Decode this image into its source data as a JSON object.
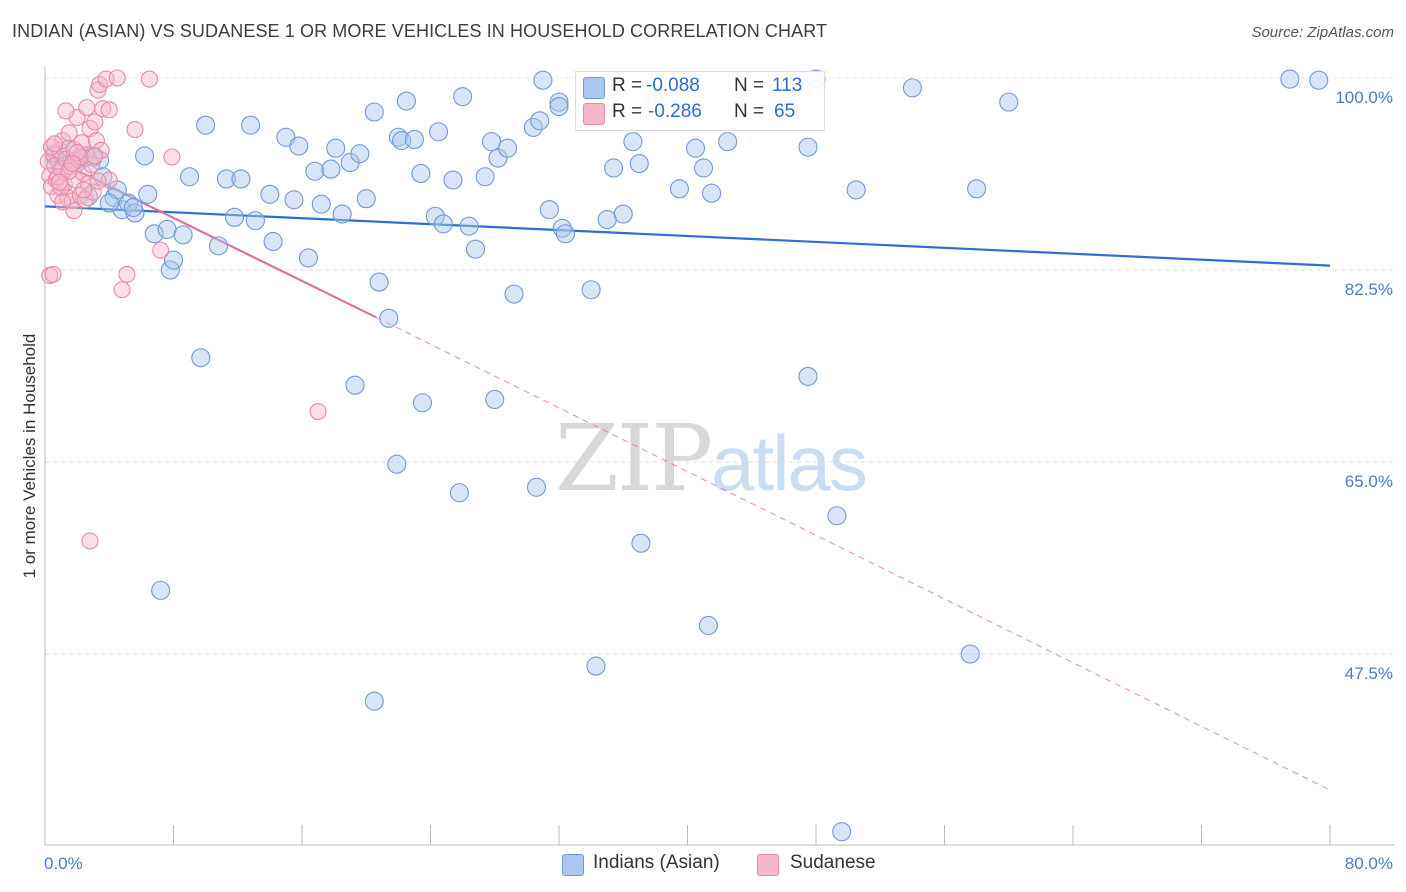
{
  "header": {
    "title": "INDIAN (ASIAN) VS SUDANESE 1 OR MORE VEHICLES IN HOUSEHOLD CORRELATION CHART",
    "source": "Source: ZipAtlas.com"
  },
  "watermark": {
    "zip": "ZIP",
    "atlas": "atlas"
  },
  "legend_top": {
    "rows": [
      {
        "r_label": "R = ",
        "r_value": "-0.088",
        "n_label": "N = ",
        "n_value": "113"
      },
      {
        "r_label": "R = ",
        "r_value": "-0.286",
        "n_label": "N = ",
        "n_value": "65"
      }
    ]
  },
  "legend_bottom": {
    "series1": "Indians (Asian)",
    "series2": "Sudanese"
  },
  "chart_data": {
    "type": "scatter",
    "title": "INDIAN (ASIAN) VS SUDANESE 1 OR MORE VEHICLES IN HOUSEHOLD CORRELATION CHART",
    "xlabel": "",
    "ylabel": "1 or more Vehicles in Household",
    "xlim": [
      0,
      80
    ],
    "ylim": [
      30,
      102
    ],
    "x_ticks": [
      "0.0%",
      "80.0%"
    ],
    "y_ticks": [
      {
        "value": 47.5,
        "label": "47.5%"
      },
      {
        "value": 65.0,
        "label": "65.0%"
      },
      {
        "value": 82.5,
        "label": "82.5%"
      },
      {
        "value": 100.0,
        "label": "100.0%"
      }
    ],
    "grid": true,
    "legend_position": "bottom",
    "colors": {
      "blue_fill": "#aac6ee",
      "blue_stroke": "#6f9ad8",
      "blue_line": "#2f6fd0",
      "pink_fill": "#f6b8cc",
      "pink_stroke": "#e889a8",
      "pink_line": "#e0709a"
    },
    "series": [
      {
        "name": "Indians (Asian)",
        "R": -0.088,
        "N": 113,
        "trend": {
          "x": [
            0,
            80
          ],
          "y": [
            88.3,
            82.9
          ]
        },
        "points": [
          [
            0.6,
            92.9
          ],
          [
            1.2,
            91.7
          ],
          [
            1.8,
            92.4
          ],
          [
            2.4,
            92.7
          ],
          [
            2.7,
            89.2
          ],
          [
            3.4,
            92.5
          ],
          [
            3.6,
            91.0
          ],
          [
            4.3,
            89.1
          ],
          [
            4.5,
            89.8
          ],
          [
            4.8,
            88.0
          ],
          [
            5.2,
            88.6
          ],
          [
            5.6,
            87.7
          ],
          [
            6.2,
            92.9
          ],
          [
            6.4,
            89.4
          ],
          [
            6.8,
            85.8
          ],
          [
            7.6,
            86.2
          ],
          [
            7.8,
            82.5
          ],
          [
            8.0,
            83.4
          ],
          [
            8.6,
            85.7
          ],
          [
            9.0,
            91.0
          ],
          [
            10.0,
            95.7
          ],
          [
            10.8,
            84.7
          ],
          [
            11.3,
            90.8
          ],
          [
            11.8,
            87.3
          ],
          [
            12.2,
            90.8
          ],
          [
            12.8,
            95.7
          ],
          [
            13.1,
            87.0
          ],
          [
            14.0,
            89.4
          ],
          [
            14.2,
            85.1
          ],
          [
            15.0,
            94.6
          ],
          [
            15.5,
            88.9
          ],
          [
            15.8,
            93.8
          ],
          [
            16.4,
            83.6
          ],
          [
            16.8,
            91.5
          ],
          [
            17.2,
            88.5
          ],
          [
            17.8,
            91.7
          ],
          [
            18.1,
            93.6
          ],
          [
            18.5,
            87.6
          ],
          [
            19.0,
            92.3
          ],
          [
            19.6,
            93.1
          ],
          [
            20.0,
            89.0
          ],
          [
            20.5,
            96.9
          ],
          [
            20.8,
            81.4
          ],
          [
            21.4,
            78.1
          ],
          [
            22.0,
            94.6
          ],
          [
            22.2,
            94.3
          ],
          [
            22.5,
            97.9
          ],
          [
            23.0,
            94.4
          ],
          [
            23.4,
            91.3
          ],
          [
            24.3,
            87.4
          ],
          [
            24.5,
            95.1
          ],
          [
            24.8,
            86.7
          ],
          [
            25.4,
            90.7
          ],
          [
            26.4,
            86.5
          ],
          [
            26.8,
            84.4
          ],
          [
            27.4,
            91.0
          ],
          [
            27.8,
            94.2
          ],
          [
            28.2,
            92.7
          ],
          [
            28.8,
            93.6
          ],
          [
            29.2,
            80.3
          ],
          [
            30.4,
            95.5
          ],
          [
            30.8,
            96.1
          ],
          [
            31.0,
            99.8
          ],
          [
            31.4,
            88.0
          ],
          [
            32.0,
            97.8
          ],
          [
            32.2,
            86.3
          ],
          [
            32.4,
            85.8
          ],
          [
            34.0,
            80.7
          ],
          [
            35.0,
            87.1
          ],
          [
            35.4,
            91.8
          ],
          [
            36.0,
            87.6
          ],
          [
            36.6,
            94.2
          ],
          [
            37.0,
            92.2
          ],
          [
            38.0,
            97.8
          ],
          [
            38.5,
            98.4
          ],
          [
            39.5,
            89.9
          ],
          [
            40.5,
            93.6
          ],
          [
            41.0,
            91.8
          ],
          [
            41.5,
            89.5
          ],
          [
            42.5,
            94.2
          ],
          [
            47.0,
            99.7
          ],
          [
            47.5,
            93.7
          ],
          [
            50.5,
            89.8
          ],
          [
            54.0,
            99.1
          ],
          [
            77.5,
            99.9
          ],
          [
            79.3,
            99.8
          ],
          [
            48.0,
            99.9
          ],
          [
            2.0,
            92.3
          ],
          [
            3.0,
            92.8
          ],
          [
            1.5,
            93.5
          ],
          [
            0.9,
            92.3
          ],
          [
            4.0,
            88.6
          ],
          [
            5.5,
            88.2
          ],
          [
            9.7,
            74.5
          ],
          [
            19.3,
            72.0
          ],
          [
            23.5,
            70.4
          ],
          [
            28.0,
            70.7
          ],
          [
            47.5,
            72.8
          ],
          [
            21.9,
            64.8
          ],
          [
            25.8,
            62.2
          ],
          [
            30.6,
            62.7
          ],
          [
            37.1,
            57.6
          ],
          [
            49.3,
            60.1
          ],
          [
            7.2,
            53.3
          ],
          [
            41.3,
            50.1
          ],
          [
            57.6,
            47.5
          ],
          [
            34.3,
            46.4
          ],
          [
            20.5,
            43.2
          ],
          [
            49.6,
            31.3
          ],
          [
            58.0,
            89.9
          ],
          [
            60.0,
            97.8
          ],
          [
            32.0,
            97.4
          ],
          [
            26.0,
            98.3
          ]
        ]
      },
      {
        "name": "Sudanese",
        "R": -0.286,
        "N": 65,
        "trend": {
          "x": [
            0,
            20.6
          ],
          "y": [
            93.0,
            78.2
          ]
        },
        "trend_extended": {
          "x": [
            20.6,
            80
          ],
          "y": [
            78.2,
            35.1
          ]
        },
        "points": [
          [
            0.2,
            92.4
          ],
          [
            0.3,
            91.1
          ],
          [
            0.4,
            90.1
          ],
          [
            0.5,
            93.1
          ],
          [
            0.6,
            92.0
          ],
          [
            0.7,
            90.7
          ],
          [
            0.8,
            89.3
          ],
          [
            0.9,
            93.4
          ],
          [
            1.0,
            91.7
          ],
          [
            1.1,
            94.3
          ],
          [
            1.2,
            90.3
          ],
          [
            1.3,
            92.6
          ],
          [
            1.4,
            89.1
          ],
          [
            1.5,
            95.0
          ],
          [
            1.6,
            91.9
          ],
          [
            1.7,
            88.8
          ],
          [
            1.8,
            93.5
          ],
          [
            1.9,
            90.7
          ],
          [
            2.0,
            96.4
          ],
          [
            2.1,
            92.5
          ],
          [
            2.2,
            89.3
          ],
          [
            2.3,
            94.1
          ],
          [
            2.4,
            91.3
          ],
          [
            2.5,
            88.9
          ],
          [
            2.6,
            93.0
          ],
          [
            2.7,
            90.4
          ],
          [
            2.8,
            95.4
          ],
          [
            2.9,
            92.1
          ],
          [
            3.0,
            89.6
          ],
          [
            3.1,
            96.0
          ],
          [
            3.2,
            94.3
          ],
          [
            3.3,
            98.9
          ],
          [
            3.4,
            99.4
          ],
          [
            3.5,
            93.4
          ],
          [
            3.6,
            97.2
          ],
          [
            3.8,
            99.9
          ],
          [
            4.0,
            90.7
          ],
          [
            4.5,
            100.0
          ],
          [
            5.6,
            95.3
          ],
          [
            6.5,
            99.9
          ],
          [
            0.3,
            82.0
          ],
          [
            0.5,
            82.1
          ],
          [
            4.8,
            80.7
          ],
          [
            5.1,
            82.1
          ],
          [
            7.2,
            84.3
          ],
          [
            7.9,
            92.8
          ],
          [
            17.0,
            69.6
          ],
          [
            2.8,
            57.8
          ],
          [
            1.0,
            90.0
          ],
          [
            1.8,
            87.9
          ],
          [
            0.4,
            93.7
          ],
          [
            0.6,
            94.0
          ],
          [
            2.2,
            92.8
          ],
          [
            3.3,
            90.6
          ],
          [
            1.3,
            97.0
          ],
          [
            2.6,
            97.3
          ],
          [
            4.0,
            97.1
          ],
          [
            3.1,
            92.9
          ],
          [
            1.1,
            88.7
          ],
          [
            0.8,
            91.0
          ],
          [
            2.0,
            93.2
          ],
          [
            1.5,
            91.5
          ],
          [
            0.9,
            90.5
          ],
          [
            2.4,
            89.8
          ],
          [
            1.7,
            92.2
          ]
        ]
      }
    ]
  }
}
